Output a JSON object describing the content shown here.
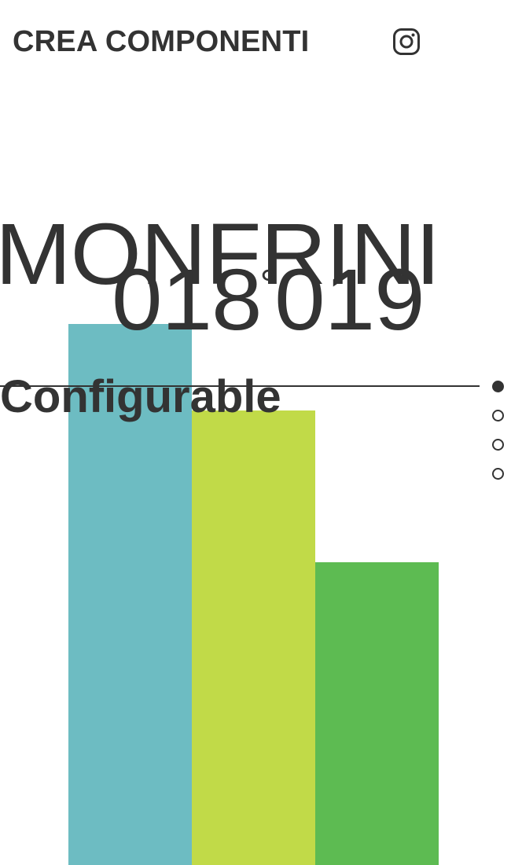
{
  "header": {
    "brand_label": "CREA COMPONENTI",
    "instagram_icon": "instagram-icon"
  },
  "hero": {
    "title_line1": "MONFRINI",
    "title_line2_a": "018",
    "title_line2_deg": "°",
    "title_line2_b": "019",
    "subtitle": "Configurable"
  },
  "bars": [
    {
      "name": "bar-teal",
      "color": "#6dbcc2",
      "top_level": 0.625
    },
    {
      "name": "bar-lime",
      "color": "#c1da48",
      "top_level": 0.525
    },
    {
      "name": "bar-green",
      "color": "#5dbb52",
      "top_level": 0.35
    }
  ],
  "pager": {
    "count": 4,
    "active_index": 0
  },
  "colors": {
    "text": "#333333",
    "background": "#ffffff"
  }
}
